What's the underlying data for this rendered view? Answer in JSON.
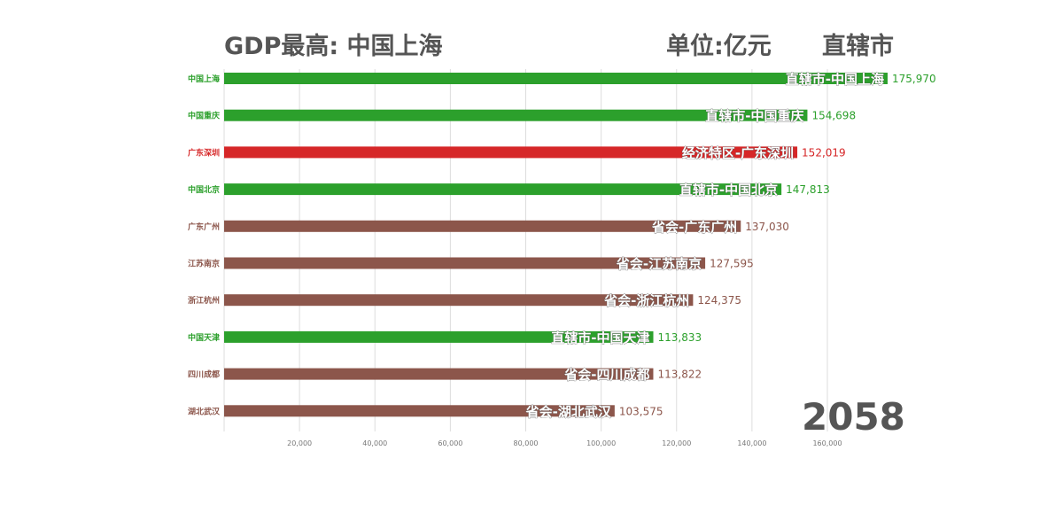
{
  "header": {
    "title": "GDP最高: 中国上海",
    "unit": "单位:亿元",
    "category": "直辖市"
  },
  "year": "2058",
  "colors": {
    "直辖市": "#2ca02c",
    "经济特区": "#d62728",
    "省会": "#8c564b",
    "grid": "#dddddd",
    "axis_text": "#777777"
  },
  "chart_data": {
    "type": "bar",
    "orientation": "horizontal",
    "categories": [
      "中国上海",
      "中国重庆",
      "广东深圳",
      "中国北京",
      "广东广州",
      "江苏南京",
      "浙江杭州",
      "中国天津",
      "四川成都",
      "湖北武汉"
    ],
    "bar_labels": [
      "直辖市-中国上海",
      "直辖市-中国重庆",
      "经济特区-广东深圳",
      "直辖市-中国北京",
      "省会-广东广州",
      "省会-江苏南京",
      "省会-浙江杭州",
      "直辖市-中国天津",
      "省会-四川成都",
      "省会-湖北武汉"
    ],
    "groups": [
      "直辖市",
      "直辖市",
      "经济特区",
      "直辖市",
      "省会",
      "省会",
      "省会",
      "直辖市",
      "省会",
      "省会"
    ],
    "values": [
      175970,
      154698,
      152019,
      147813,
      137030,
      127595,
      124375,
      113833,
      113822,
      103575
    ],
    "value_labels": [
      "175,970",
      "154,698",
      "152,019",
      "147,813",
      "137,030",
      "127,595",
      "124,375",
      "113,833",
      "113,822",
      "103,575"
    ],
    "x_ticks": [
      20000,
      40000,
      60000,
      80000,
      100000,
      120000,
      140000,
      160000
    ],
    "x_tick_labels": [
      "20,000",
      "40,000",
      "60,000",
      "80,000",
      "100,000",
      "120,000",
      "140,000",
      "160,000"
    ],
    "xlim": [
      0,
      175970
    ],
    "grid": "vertical"
  }
}
